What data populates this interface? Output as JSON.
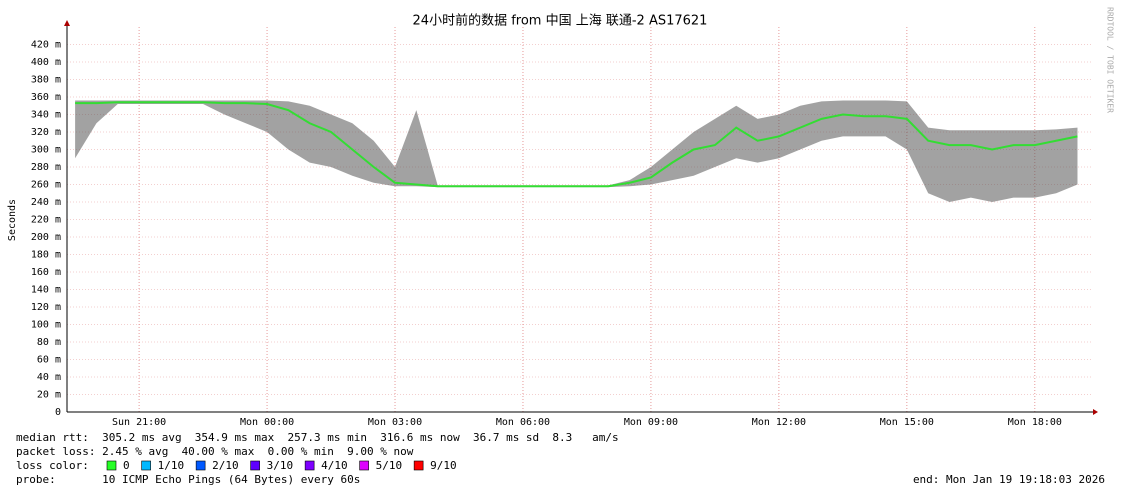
{
  "chart_data": {
    "type": "smoke",
    "title": "24小时前的数据 from 中国 上海 联通-2 AS17621",
    "y_label": "Seconds",
    "watermark": "RRDTOOL / TOBI OETIKER",
    "color": "#33dd33",
    "smoke_color": "#555555",
    "grid": true,
    "ylim": [
      0,
      440
    ],
    "yticks": [
      0,
      {
        "value": 20,
        "label": "20 m"
      },
      {
        "value": 40,
        "label": "40 m"
      },
      {
        "value": 60,
        "label": "60 m"
      },
      {
        "value": 80,
        "label": "80 m"
      },
      {
        "value": 100,
        "label": "100 m"
      },
      {
        "value": 120,
        "label": "120 m"
      },
      {
        "value": 140,
        "label": "140 m"
      },
      {
        "value": 160,
        "label": "160 m"
      },
      {
        "value": 180,
        "label": "180 m"
      },
      {
        "value": 200,
        "label": "200 m"
      },
      {
        "value": 220,
        "label": "220 m"
      },
      {
        "value": 240,
        "label": "240 m"
      },
      {
        "value": 260,
        "label": "260 m"
      },
      {
        "value": 280,
        "label": "280 m"
      },
      {
        "value": 300,
        "label": "300 m"
      },
      {
        "value": 320,
        "label": "320 m"
      },
      {
        "value": 340,
        "label": "340 m"
      },
      {
        "value": 360,
        "label": "360 m"
      },
      {
        "value": 380,
        "label": "380 m"
      },
      {
        "value": 400,
        "label": "400 m"
      },
      {
        "value": 420,
        "label": "420 m"
      }
    ],
    "xlim": [
      19.31,
      43.27
    ],
    "xticks": [
      {
        "value": 21,
        "label": "Sun 21:00"
      },
      {
        "value": 24,
        "label": "Mon 00:00"
      },
      {
        "value": 27,
        "label": "Mon 03:00"
      },
      {
        "value": 30,
        "label": "Mon 06:00"
      },
      {
        "value": 33,
        "label": "Mon 09:00"
      },
      {
        "value": 36,
        "label": "Mon 12:00"
      },
      {
        "value": 39,
        "label": "Mon 15:00"
      },
      {
        "value": 42,
        "label": "Mon 18:00"
      }
    ],
    "x": [
      19.5,
      20,
      20.5,
      21,
      21.5,
      22,
      22.5,
      23,
      23.5,
      24,
      24.5,
      25,
      25.5,
      26,
      26.5,
      27,
      27.5,
      28,
      29,
      30,
      31,
      32,
      32.5,
      33,
      33.5,
      34,
      34.5,
      35,
      35.5,
      36,
      36.5,
      37,
      37.5,
      38,
      38.5,
      39,
      39.5,
      40,
      40.5,
      41,
      41.5,
      42,
      42.5,
      43
    ],
    "values": [
      353,
      353,
      354,
      354,
      354,
      354,
      354,
      353,
      353,
      352,
      345,
      330,
      320,
      300,
      280,
      262,
      260,
      258,
      258,
      258,
      258,
      258,
      262,
      268,
      285,
      300,
      305,
      325,
      310,
      315,
      325,
      335,
      340,
      338,
      338,
      335,
      310,
      305,
      305,
      300,
      305,
      305,
      310,
      315
    ],
    "smoke_low": [
      290,
      330,
      352,
      352,
      352,
      352,
      352,
      340,
      330,
      320,
      300,
      285,
      280,
      270,
      262,
      258,
      258,
      257,
      257,
      257,
      257,
      257,
      258,
      260,
      265,
      270,
      280,
      290,
      285,
      290,
      300,
      310,
      315,
      315,
      315,
      300,
      250,
      240,
      245,
      240,
      245,
      245,
      250,
      260
    ],
    "smoke_high": [
      356,
      356,
      356,
      356,
      356,
      356,
      356,
      356,
      356,
      356,
      355,
      350,
      340,
      330,
      310,
      280,
      345,
      259,
      259,
      259,
      259,
      259,
      265,
      280,
      300,
      320,
      335,
      350,
      335,
      340,
      350,
      355,
      356,
      356,
      356,
      355,
      325,
      322,
      322,
      322,
      322,
      322,
      323,
      325
    ],
    "stats": [
      "median rtt:  305.2 ms avg  354.9 ms max  257.3 ms min  316.6 ms now  36.7 ms sd  8.3   am/s",
      "packet loss: 2.45 % avg  40.00 % max  0.00 % min  9.00 % now"
    ],
    "legend_title": "loss color:",
    "legend": [
      {
        "name": "0",
        "color": "#26ff26"
      },
      {
        "name": "1/10",
        "color": "#00b8ff"
      },
      {
        "name": "2/10",
        "color": "#0059ff"
      },
      {
        "name": "3/10",
        "color": "#5e00ff"
      },
      {
        "name": "4/10",
        "color": "#7e00ff"
      },
      {
        "name": "5/10",
        "color": "#dd00ff"
      },
      {
        "name": "9/10",
        "color": "#ff0000"
      }
    ],
    "probe": "probe:       10 ICMP Echo Pings (64 Bytes) every 60s",
    "end": "end: Mon Jan 19 19:18:03 2026"
  }
}
